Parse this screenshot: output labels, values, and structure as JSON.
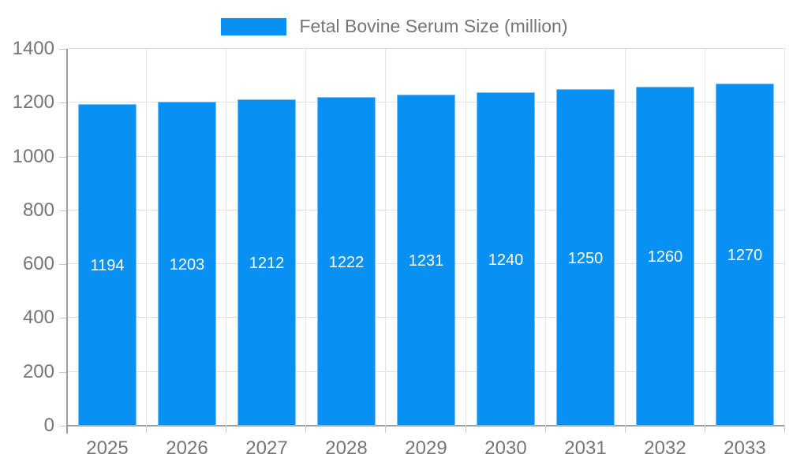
{
  "chart_data": {
    "type": "bar",
    "title": "",
    "xlabel": "",
    "ylabel": "",
    "categories": [
      "2025",
      "2026",
      "2027",
      "2028",
      "2029",
      "2030",
      "2031",
      "2032",
      "2033"
    ],
    "series": [
      {
        "name": "Fetal Bovine Serum Size (million)",
        "values": [
          1194,
          1203,
          1212,
          1222,
          1231,
          1240,
          1250,
          1260,
          1270
        ]
      }
    ],
    "ylim": [
      0,
      1400
    ],
    "ytick_step": 200,
    "yticks": [
      0,
      200,
      400,
      600,
      800,
      1000,
      1200,
      1400
    ],
    "grid": "on",
    "legend_position": "top-center",
    "value_labels": "inside-center",
    "colors": {
      "bar_fill": "#0890f2",
      "bar_border": "#7cc3f8",
      "value_label_text": "#ffffff",
      "axis_label_text": "#757575",
      "legend_text": "#757575",
      "gridline": "#e0e0e0",
      "vertical_gridline": "#e6e6e6",
      "axis_line": "#9e9e9e",
      "tick_mark": "#c8c8c8",
      "background": "#ffffff"
    }
  }
}
